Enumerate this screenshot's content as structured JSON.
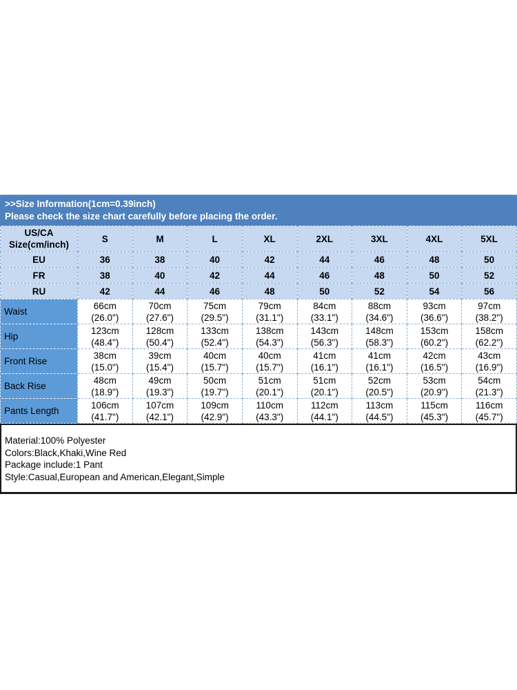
{
  "banner": {
    "title": ">>Size Information(1cm=0.39inch)",
    "note": "Please check the size chart carefully before placing the order."
  },
  "table": {
    "corner": {
      "line1": "US/CA",
      "line2": "Size(cm/inch)"
    },
    "sizes": [
      "S",
      "M",
      "L",
      "XL",
      "2XL",
      "3XL",
      "4XL",
      "5XL"
    ],
    "regions": [
      {
        "label": "EU",
        "values": [
          "36",
          "38",
          "40",
          "42",
          "44",
          "46",
          "48",
          "50"
        ]
      },
      {
        "label": "FR",
        "values": [
          "38",
          "40",
          "42",
          "44",
          "46",
          "48",
          "50",
          "52"
        ]
      },
      {
        "label": "RU",
        "values": [
          "42",
          "44",
          "46",
          "48",
          "50",
          "52",
          "54",
          "56"
        ]
      }
    ],
    "measurements": [
      {
        "label": "Waist",
        "cm": [
          "66cm",
          "70cm",
          "75cm",
          "79cm",
          "84cm",
          "88cm",
          "93cm",
          "97cm"
        ],
        "in": [
          "(26.0\")",
          "(27.6\")",
          "(29.5\")",
          "(31.1\")",
          "(33.1\")",
          "(34.6\")",
          "(36.6\")",
          "(38.2\")"
        ]
      },
      {
        "label": "Hip",
        "cm": [
          "123cm",
          "128cm",
          "133cm",
          "138cm",
          "143cm",
          "148cm",
          "153cm",
          "158cm"
        ],
        "in": [
          "(48.4\")",
          "(50.4\")",
          "(52.4\")",
          "(54.3\")",
          "(56.3\")",
          "(58.3\")",
          "(60.2\")",
          "(62.2\")"
        ]
      },
      {
        "label": "Front Rise",
        "cm": [
          "38cm",
          "39cm",
          "40cm",
          "40cm",
          "41cm",
          "41cm",
          "42cm",
          "43cm"
        ],
        "in": [
          "(15.0\")",
          "(15.4\")",
          "(15.7\")",
          "(15.7\")",
          "(16.1\")",
          "(16.1\")",
          "(16.5\")",
          "(16.9\")"
        ]
      },
      {
        "label": "Back Rise",
        "cm": [
          "48cm",
          "49cm",
          "50cm",
          "51cm",
          "51cm",
          "52cm",
          "53cm",
          "54cm"
        ],
        "in": [
          "(18.9\")",
          "(19.3\")",
          "(19.7\")",
          "(20.1\")",
          "(20.1\")",
          "(20.5\")",
          "(20.9\")",
          "(21.3\")"
        ]
      },
      {
        "label": "Pants Length",
        "cm": [
          "106cm",
          "107cm",
          "109cm",
          "110cm",
          "112cm",
          "113cm",
          "115cm",
          "116cm"
        ],
        "in": [
          "(41.7\")",
          "(42.1\")",
          "(42.9\")",
          "(43.3\")",
          "(44.1\")",
          "(44.5\")",
          "(45.3\")",
          "(45.7\")"
        ]
      }
    ]
  },
  "specs": {
    "material": "Material:100% Polyester",
    "colors": "Colors:Black,Khaki,Wine Red",
    "package": "Package include:1 Pant",
    "style": "Style:Casual,European and American,Elegant,Simple"
  },
  "colors": {
    "banner_blue": "#4E81BD",
    "light_blue": "#C6D9F1",
    "label_blue": "#5D9BD8",
    "cell_border": "#93AFD4",
    "specs_border": "#1A1A1A",
    "banner_text": "#FFFFFF",
    "body_text": "#000000"
  }
}
